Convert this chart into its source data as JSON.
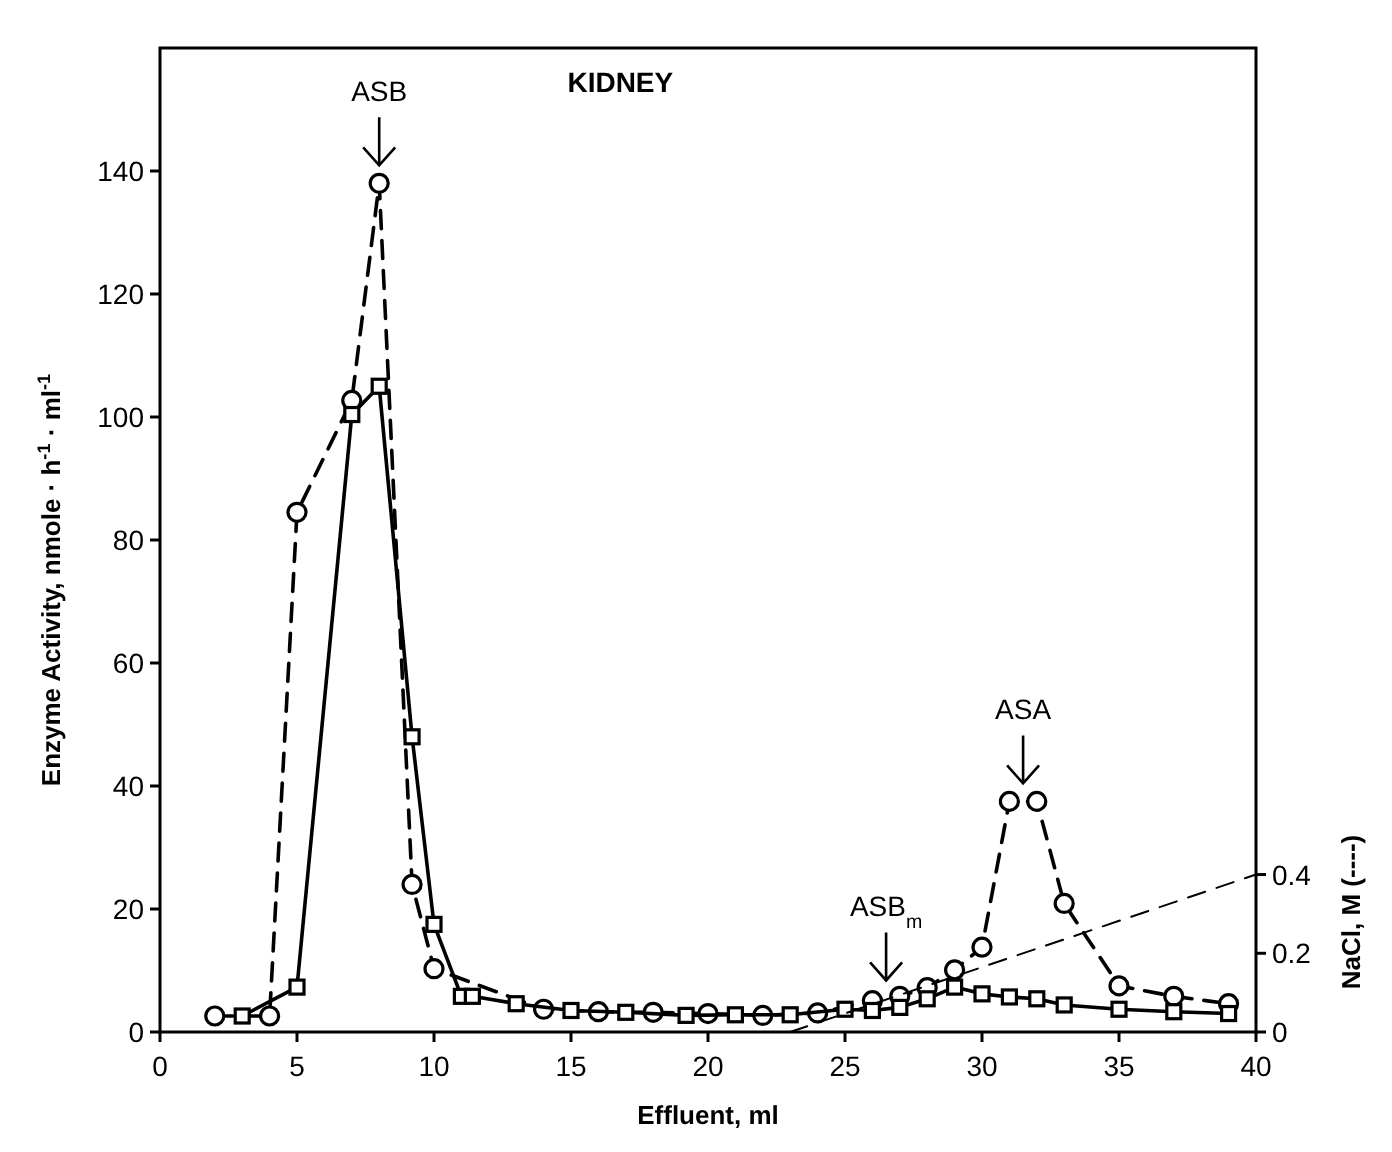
{
  "chart_data": {
    "type": "line",
    "title": "KIDNEY",
    "xlabel": "Effluent, ml",
    "ylabel": "Enzyme Activity, nmole · h$^{-1}$ · ml$^{-1}$",
    "y2label": "NaCl, M (----)",
    "xlim": [
      0,
      40
    ],
    "xticks": [
      0,
      5,
      10,
      15,
      20,
      25,
      30,
      35,
      40
    ],
    "ylim": [
      0,
      160
    ],
    "yticks": [
      0,
      20,
      40,
      60,
      80,
      100,
      120,
      140
    ],
    "y2lim": [
      0,
      2.5
    ],
    "y2ticks": [
      0,
      {
        "value": 0.2,
        "label": "0.2"
      },
      {
        "value": 0.4,
        "label": "0.4"
      }
    ],
    "grid": false,
    "series": [
      {
        "color": "#000000",
        "marker": "circle",
        "line_style": "dashed",
        "x": [
          2,
          4,
          5,
          7,
          8,
          9.2,
          10,
          14,
          16,
          18,
          20,
          22,
          24,
          26,
          27,
          28,
          29,
          30,
          31,
          32,
          33,
          35,
          37,
          39
        ],
        "values": [
          2.6,
          2.6,
          84.5,
          102.7,
          138,
          24,
          10.3,
          3.7,
          3.3,
          3.2,
          3.0,
          2.7,
          3.1,
          5.1,
          5.8,
          7.2,
          10.1,
          13.8,
          37.5,
          37.5,
          20.9,
          7.5,
          5.8,
          4.6
        ]
      },
      {
        "color": "#000000",
        "marker": "square",
        "line_style": "solid",
        "x": [
          3,
          5,
          7,
          8,
          9.2,
          10,
          11,
          11.4,
          13,
          15,
          17,
          19.2,
          21,
          23,
          25,
          26,
          27,
          28,
          29,
          30,
          31,
          32,
          33,
          35,
          37,
          39
        ],
        "values": [
          2.6,
          7.3,
          100.4,
          105,
          48,
          17.5,
          5.8,
          5.8,
          4.6,
          3.5,
          3.2,
          2.7,
          2.8,
          2.8,
          3.7,
          3.5,
          4.0,
          5.4,
          7.3,
          6.2,
          5.7,
          5.4,
          4.4,
          3.7,
          3.3,
          3.0
        ]
      },
      {
        "color": "#000000",
        "marker": "none",
        "line_style": "dashed",
        "axis": "y2",
        "x": [
          23,
          40
        ],
        "values": [
          0,
          0.4
        ]
      }
    ],
    "annotations": [
      {
        "text": "ASB",
        "x": 8,
        "y": 138
      },
      {
        "text": "ASB$_{m}$",
        "x": 26.5,
        "y": 5.45
      },
      {
        "text": "ASA",
        "x": 31.5,
        "y": 37.5
      }
    ]
  }
}
